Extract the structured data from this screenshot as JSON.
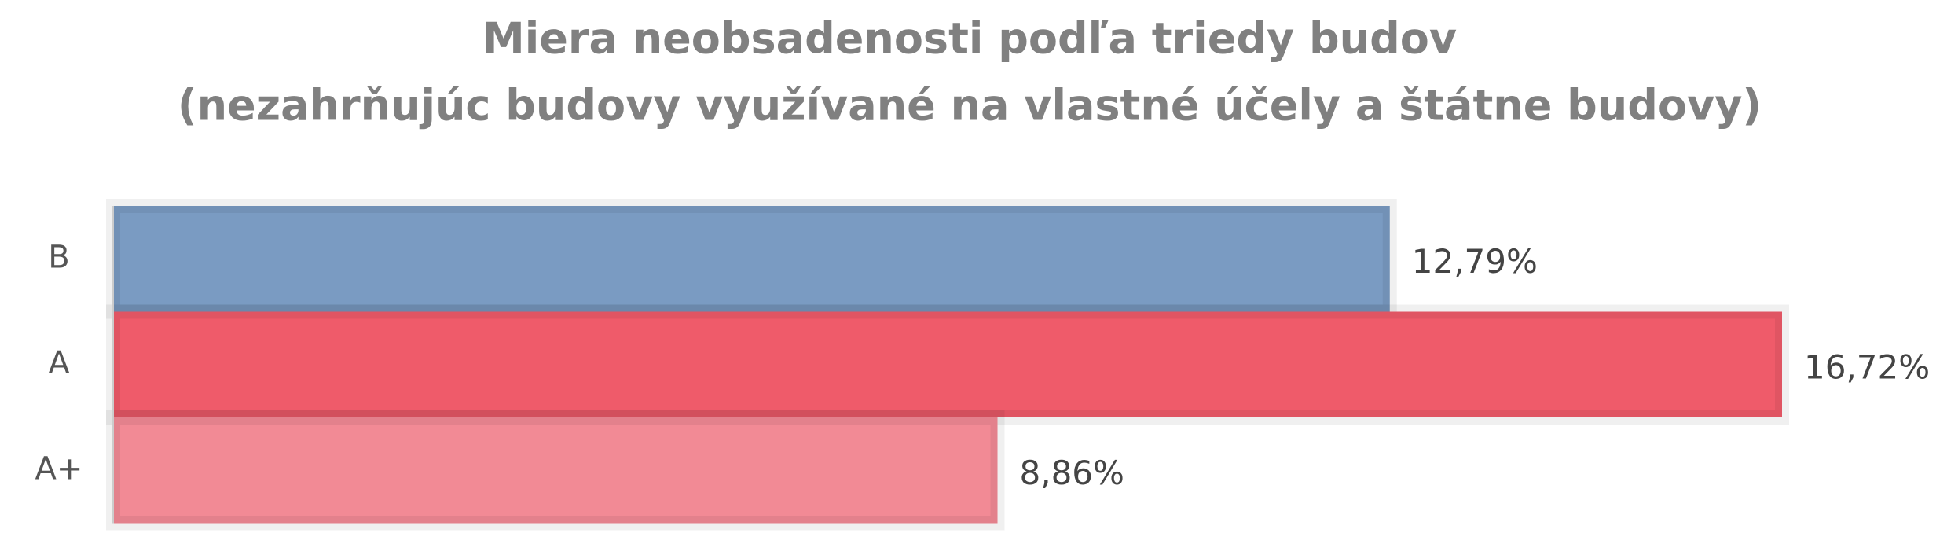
{
  "chart_data": {
    "type": "hbar",
    "title": "Miera neobsadenosti podľa triedy budov",
    "subtitle": "(nezahrňujúc budovy využívané na vlastné účely a štátne budovy)",
    "categories": [
      "B",
      "A",
      "A+"
    ],
    "values": [
      12.79,
      16.72,
      8.86
    ],
    "value_labels": [
      "12,79%",
      "16,72%",
      "8,86%"
    ],
    "colors": [
      "#7a9bc2",
      "#ef5b6a",
      "#f28a95"
    ]
  }
}
